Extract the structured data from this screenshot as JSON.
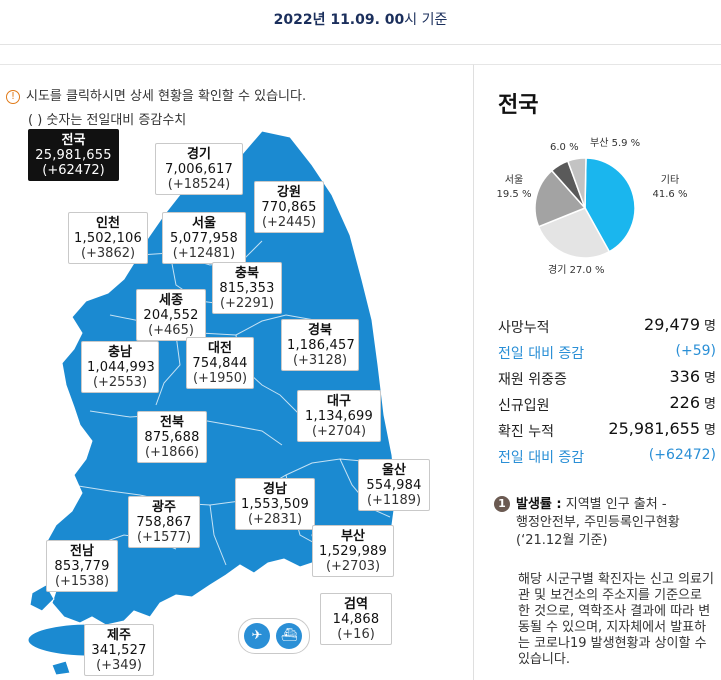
{
  "header": {
    "date_bold": "2022년 11.09. 00",
    "date_suffix": "시 기준"
  },
  "map_info": {
    "line1": "시도를 클릭하시면 상세 현황을 확인할 수 있습니다.",
    "line2": "( ) 숫자는 전일대비 증감수치",
    "info_icon_text": "!"
  },
  "regions": [
    {
      "name": "전국",
      "value": "25,981,655",
      "delta": "(+62472)"
    },
    {
      "name": "경기",
      "value": "7,006,617",
      "delta": "(+18524)"
    },
    {
      "name": "강원",
      "value": "770,865",
      "delta": "(+2445)"
    },
    {
      "name": "인천",
      "value": "1,502,106",
      "delta": "(+3862)"
    },
    {
      "name": "서울",
      "value": "5,077,958",
      "delta": "(+12481)"
    },
    {
      "name": "충북",
      "value": "815,353",
      "delta": "(+2291)"
    },
    {
      "name": "세종",
      "value": "204,552",
      "delta": "(+465)"
    },
    {
      "name": "경북",
      "value": "1,186,457",
      "delta": "(+3128)"
    },
    {
      "name": "충남",
      "value": "1,044,993",
      "delta": "(+2553)"
    },
    {
      "name": "대전",
      "value": "754,844",
      "delta": "(+1950)"
    },
    {
      "name": "대구",
      "value": "1,134,699",
      "delta": "(+2704)"
    },
    {
      "name": "전북",
      "value": "875,688",
      "delta": "(+1866)"
    },
    {
      "name": "울산",
      "value": "554,984",
      "delta": "(+1189)"
    },
    {
      "name": "경남",
      "value": "1,553,509",
      "delta": "(+2831)"
    },
    {
      "name": "광주",
      "value": "758,867",
      "delta": "(+1577)"
    },
    {
      "name": "부산",
      "value": "1,529,989",
      "delta": "(+2703)"
    },
    {
      "name": "전남",
      "value": "853,779",
      "delta": "(+1538)"
    },
    {
      "name": "검역",
      "value": "14,868",
      "delta": "(+16)"
    },
    {
      "name": "제주",
      "value": "341,527",
      "delta": "(+349)"
    }
  ],
  "panel": {
    "title": "전국",
    "pie": {
      "slices": [
        {
          "label": "기타",
          "pct": "41.6 %",
          "value": 41.6,
          "color": "#1ab6ee"
        },
        {
          "label": "경기",
          "pct": "27.0 %",
          "value": 27.0,
          "color": "#e4e4e4"
        },
        {
          "label": "서울",
          "pct": "19.5 %",
          "value": 19.5,
          "color": "#a3a3a3"
        },
        {
          "label": "",
          "pct": "6.0 %",
          "value": 6.0,
          "color": "#5a5a5a"
        },
        {
          "label": "부산",
          "pct": "5.9 %",
          "value": 5.9,
          "color": "#c3c3c3"
        }
      ]
    },
    "stats": {
      "deaths_label": "사망누적",
      "deaths_value": "29,479",
      "unit": "명",
      "deaths_delta_label": "전일 대비 증감",
      "deaths_delta": "(+59)",
      "hosp_label": "재원 위중증",
      "hosp_value": "336",
      "new_label": "신규입원",
      "new_value": "226",
      "conf_label": "확진 누적",
      "conf_value": "25,981,655",
      "conf_delta_label": "전일 대비 증감",
      "conf_delta": "(+62472)"
    },
    "note": {
      "num": "1",
      "title": "발생률 :",
      "line1": " 지역별 인구 출처 -",
      "line2": "행정안전부, 주민등록인구현황",
      "line3": "(‘21.12월 기준)",
      "body": "해당 시군구별 확진자는 신고 의료기관 및 보건소의 주소지를 기준으로 한 것으로, 역학조사 결과에 따라 변동될 수 있으며, 지자체에서 발표하는 코로나19 발생현황과 상이할 수 있습니다."
    }
  }
}
